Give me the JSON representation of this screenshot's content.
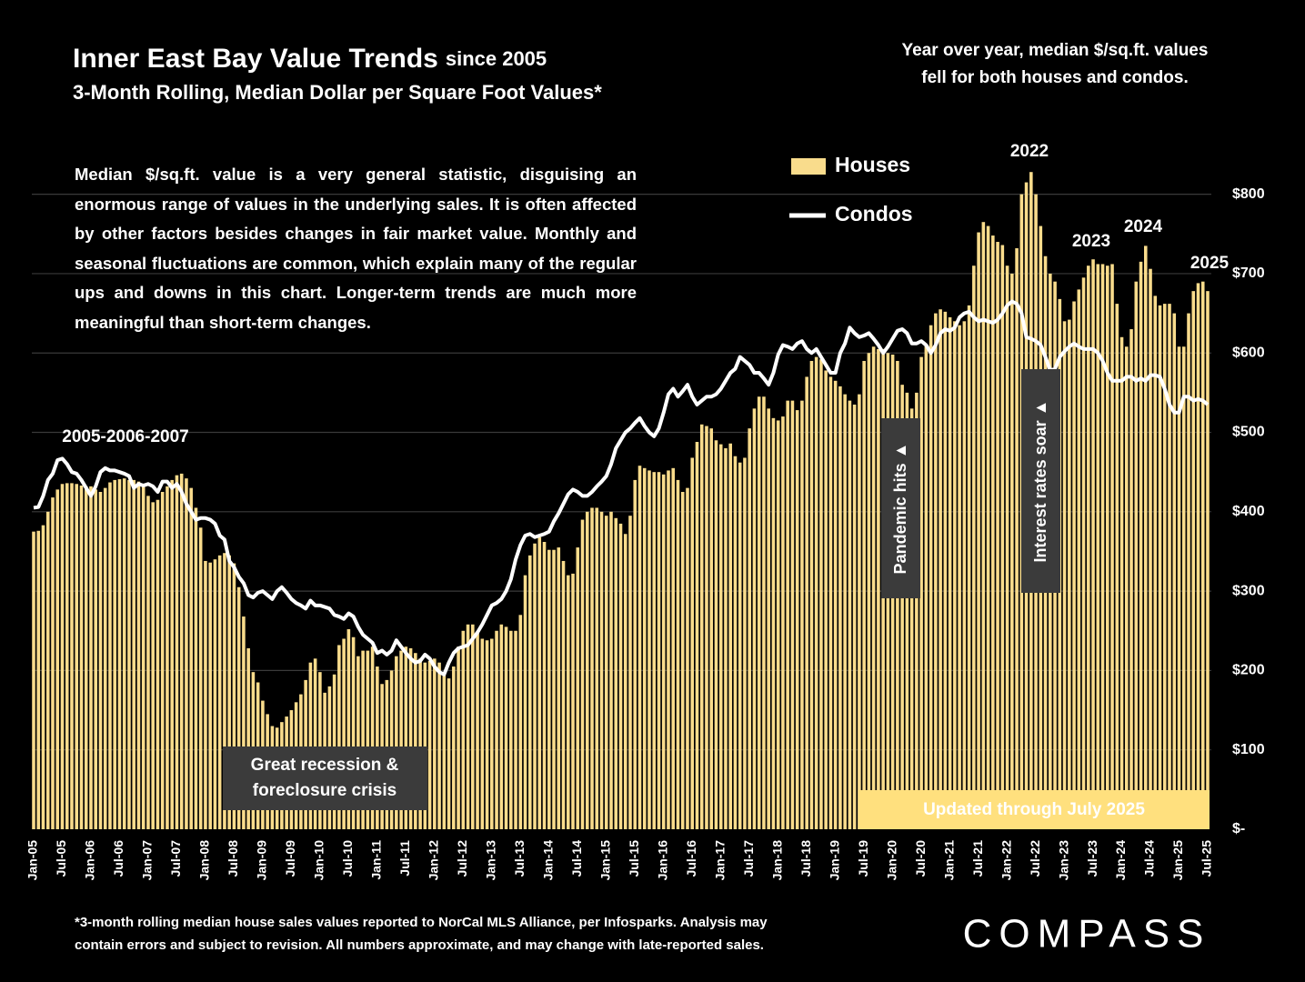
{
  "chart_data": {
    "type": "bar",
    "title": "Inner East Bay Value Trends",
    "title_note": "since 2005",
    "subtitle": "3-Month Rolling, Median Dollar per Square Foot Values*",
    "note": [
      "Year over year, median $/sq.ft. values",
      "fell for both houses and condos."
    ],
    "description": "Median $/sq.ft. value is a very general statistic, disguising an enormous range of values in the underlying sales. It is often affected by other factors besides changes in fair market value. Monthly and seasonal fluctuations are common, which explain many of the regular ups and downs in this chart. Longer-term trends are much more meaningful than short-term changes.",
    "annotations": [
      "2005-2006-2007",
      "2022",
      "2023",
      "2024",
      "2025"
    ],
    "recession_label": [
      "Great recession &",
      "foreclosure crisis"
    ],
    "pandemic_label": "Pandemic hits ▲",
    "rates_label": "Interest rates soar ▲",
    "updated_label": "Updated through July 2025",
    "footnote": [
      "*3-month rolling median house sales values reported to NorCal MLS Alliance, per Infosparks. Analysis may",
      "contain errors and subject to revision. All numbers approximate, and may change with late-reported sales."
    ],
    "logo": "COMPASS",
    "grid": true,
    "ylim": [
      0,
      850
    ],
    "yticks": [
      {
        "value": 0,
        "label": "$-"
      },
      {
        "value": 100,
        "label": "$100"
      },
      {
        "value": 200,
        "label": "$200"
      },
      {
        "value": 300,
        "label": "$300"
      },
      {
        "value": 400,
        "label": "$400"
      },
      {
        "value": 500,
        "label": "$500"
      },
      {
        "value": 600,
        "label": "$600"
      },
      {
        "value": 700,
        "label": "$700"
      },
      {
        "value": 800,
        "label": "$800"
      }
    ],
    "categories": [
      "Jan-05",
      null,
      null,
      null,
      null,
      null,
      "Jul-05",
      null,
      null,
      null,
      null,
      null,
      "Jan-06",
      null,
      null,
      null,
      null,
      null,
      "Jul-06",
      null,
      null,
      null,
      null,
      null,
      "Jan-07",
      null,
      null,
      null,
      null,
      null,
      "Jul-07",
      null,
      null,
      null,
      null,
      null,
      "Jan-08",
      null,
      null,
      null,
      null,
      null,
      "Jul-08",
      null,
      null,
      null,
      null,
      null,
      "Jan-09",
      null,
      null,
      null,
      null,
      null,
      "Jul-09",
      null,
      null,
      null,
      null,
      null,
      "Jan-10",
      null,
      null,
      null,
      null,
      null,
      "Jul-10",
      null,
      null,
      null,
      null,
      null,
      "Jan-11",
      null,
      null,
      null,
      null,
      null,
      "Jul-11",
      null,
      null,
      null,
      null,
      null,
      "Jan-12",
      null,
      null,
      null,
      null,
      null,
      "Jul-12",
      null,
      null,
      null,
      null,
      null,
      "Jan-13",
      null,
      null,
      null,
      null,
      null,
      "Jul-13",
      null,
      null,
      null,
      null,
      null,
      "Jan-14",
      null,
      null,
      null,
      null,
      null,
      "Jul-14",
      null,
      null,
      null,
      null,
      null,
      "Jan-15",
      null,
      null,
      null,
      null,
      null,
      "Jul-15",
      null,
      null,
      null,
      null,
      null,
      "Jan-16",
      null,
      null,
      null,
      null,
      null,
      "Jul-16",
      null,
      null,
      null,
      null,
      null,
      "Jan-17",
      null,
      null,
      null,
      null,
      null,
      "Jul-17",
      null,
      null,
      null,
      null,
      null,
      "Jan-18",
      null,
      null,
      null,
      null,
      null,
      "Jul-18",
      null,
      null,
      null,
      null,
      null,
      "Jan-19",
      null,
      null,
      null,
      null,
      null,
      "Jul-19",
      null,
      null,
      null,
      null,
      null,
      "Jan-20",
      null,
      null,
      null,
      null,
      null,
      "Jul-20",
      null,
      null,
      null,
      null,
      null,
      "Jan-21",
      null,
      null,
      null,
      null,
      null,
      "Jul-21",
      null,
      null,
      null,
      null,
      null,
      "Jan-22",
      null,
      null,
      null,
      null,
      null,
      "Jul-22",
      null,
      null,
      null,
      null,
      null,
      "Jan-23",
      null,
      null,
      null,
      null,
      null,
      "Jul-23",
      null,
      null,
      null,
      null,
      null,
      "Jan-24",
      null,
      null,
      null,
      null,
      null,
      "Jul-24",
      null,
      null,
      null,
      null,
      null,
      "Jan-25",
      null,
      null,
      null,
      null,
      null,
      "Jul-25"
    ],
    "series": [
      {
        "name": "Houses",
        "type": "bar",
        "color": "#f9dc8c",
        "values": [
          375,
          376,
          383,
          400,
          418,
          428,
          435,
          436,
          436,
          435,
          433,
          432,
          432,
          428,
          425,
          430,
          437,
          440,
          441,
          442,
          440,
          440,
          438,
          435,
          420,
          412,
          415,
          425,
          432,
          440,
          446,
          448,
          442,
          430,
          405,
          380,
          338,
          336,
          340,
          345,
          348,
          345,
          335,
          305,
          268,
          228,
          198,
          185,
          162,
          145,
          130,
          128,
          135,
          142,
          150,
          160,
          170,
          188,
          210,
          215,
          198,
          172,
          180,
          195,
          232,
          240,
          252,
          242,
          218,
          225,
          225,
          230,
          205,
          183,
          188,
          200,
          218,
          225,
          230,
          228,
          222,
          215,
          210,
          212,
          215,
          210,
          198,
          190,
          205,
          230,
          250,
          258,
          258,
          248,
          240,
          238,
          240,
          250,
          258,
          255,
          250,
          250,
          270,
          320,
          345,
          360,
          368,
          362,
          352,
          352,
          355,
          338,
          320,
          322,
          355,
          390,
          400,
          405,
          405,
          400,
          395,
          400,
          392,
          385,
          372,
          395,
          440,
          458,
          455,
          452,
          450,
          450,
          447,
          452,
          455,
          440,
          425,
          430,
          468,
          488,
          510,
          508,
          505,
          490,
          485,
          480,
          486,
          470,
          462,
          468,
          505,
          530,
          545,
          545,
          530,
          518,
          515,
          520,
          540,
          540,
          528,
          540,
          570,
          590,
          595,
          592,
          578,
          570,
          565,
          558,
          548,
          540,
          535,
          548,
          590,
          600,
          608,
          605,
          605,
          600,
          598,
          590,
          560,
          550,
          530,
          550,
          595,
          610,
          635,
          650,
          655,
          652,
          645,
          640,
          635,
          640,
          660,
          710,
          752,
          765,
          760,
          748,
          740,
          736,
          710,
          700,
          732,
          800,
          815,
          828,
          800,
          760,
          722,
          700,
          690,
          668,
          640,
          642,
          665,
          680,
          695,
          710,
          718,
          712,
          712,
          710,
          712,
          662,
          620,
          608,
          630,
          690,
          715,
          735,
          706,
          672,
          660,
          662,
          662,
          650,
          608,
          608,
          650,
          678,
          688,
          690,
          678
        ]
      },
      {
        "name": "Condos",
        "type": "line",
        "color": "#ffffff",
        "values": [
          405,
          406,
          420,
          440,
          448,
          465,
          467,
          460,
          450,
          448,
          440,
          430,
          420,
          432,
          450,
          455,
          452,
          452,
          450,
          448,
          445,
          430,
          435,
          433,
          435,
          432,
          425,
          438,
          438,
          430,
          435,
          425,
          410,
          400,
          390,
          392,
          392,
          390,
          385,
          370,
          365,
          338,
          330,
          318,
          310,
          295,
          292,
          298,
          300,
          295,
          290,
          300,
          305,
          298,
          290,
          285,
          282,
          278,
          288,
          282,
          282,
          280,
          278,
          270,
          268,
          265,
          272,
          268,
          255,
          245,
          240,
          235,
          222,
          225,
          220,
          225,
          238,
          230,
          222,
          215,
          210,
          212,
          220,
          215,
          205,
          198,
          195,
          210,
          222,
          228,
          230,
          232,
          240,
          248,
          258,
          270,
          282,
          285,
          290,
          300,
          315,
          340,
          358,
          370,
          372,
          368,
          370,
          372,
          375,
          388,
          398,
          410,
          422,
          428,
          425,
          420,
          420,
          425,
          432,
          438,
          445,
          460,
          480,
          490,
          500,
          505,
          512,
          518,
          508,
          500,
          495,
          505,
          525,
          548,
          555,
          545,
          552,
          560,
          545,
          535,
          540,
          545,
          545,
          548,
          555,
          565,
          575,
          580,
          595,
          590,
          585,
          575,
          575,
          568,
          560,
          575,
          598,
          610,
          608,
          605,
          612,
          615,
          605,
          600,
          605,
          595,
          585,
          575,
          575,
          600,
          612,
          632,
          625,
          620,
          622,
          625,
          618,
          610,
          600,
          608,
          618,
          628,
          630,
          625,
          612,
          612,
          615,
          610,
          600,
          610,
          625,
          630,
          628,
          632,
          645,
          650,
          652,
          645,
          640,
          642,
          640,
          638,
          642,
          650,
          660,
          665,
          662,
          650,
          620,
          618,
          615,
          610,
          595,
          578,
          580,
          595,
          602,
          608,
          612,
          608,
          605,
          605,
          605,
          600,
          590,
          575,
          565,
          565,
          565,
          570,
          570,
          565,
          568,
          565,
          572,
          572,
          570,
          555,
          535,
          525,
          525,
          545,
          545,
          540,
          542,
          540,
          535
        ]
      }
    ]
  }
}
